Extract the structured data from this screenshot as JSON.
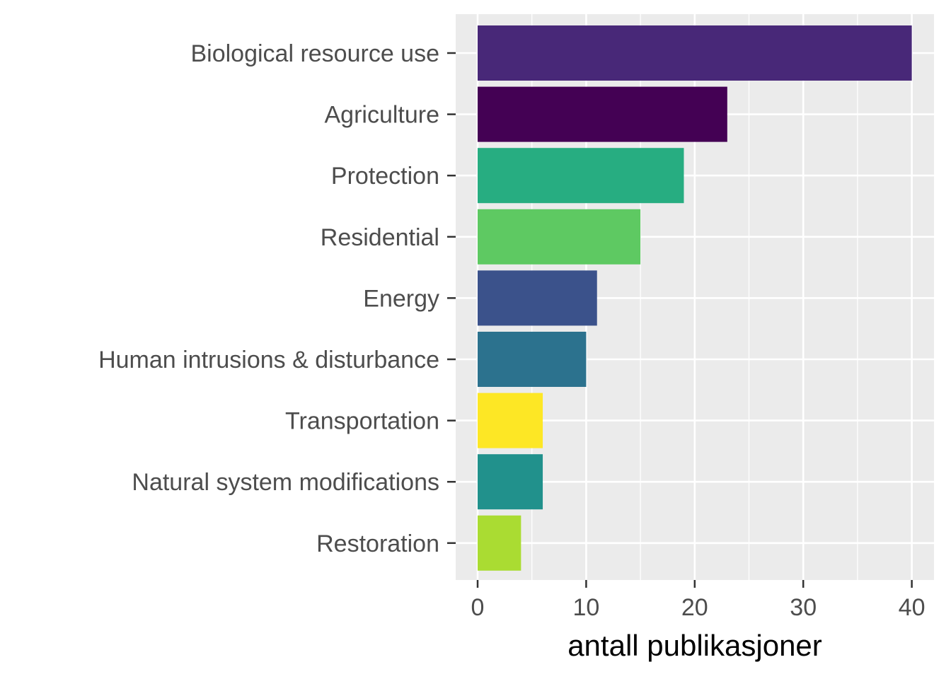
{
  "chart_data": {
    "type": "bar",
    "orientation": "horizontal",
    "title": "",
    "xlabel": "antall publikasjoner",
    "ylabel": "",
    "xlim": [
      0,
      42
    ],
    "x_ticks": [
      0,
      10,
      20,
      30,
      40
    ],
    "grid": true,
    "legend": "none",
    "panel_background": "#ebebeb",
    "grid_color": "#ffffff",
    "categories": [
      "Biological resource use",
      "Agriculture",
      "Protection",
      "Residential",
      "Energy",
      "Human intrusions & disturbance",
      "Transportation",
      "Natural system modifications",
      "Restoration"
    ],
    "values": [
      40,
      23,
      19,
      15,
      11,
      10,
      6,
      6,
      4
    ],
    "colors": [
      "#482878",
      "#440154",
      "#27ad81",
      "#5ec962",
      "#3b528b",
      "#2c728e",
      "#fde725",
      "#21918c",
      "#aadc32"
    ]
  }
}
